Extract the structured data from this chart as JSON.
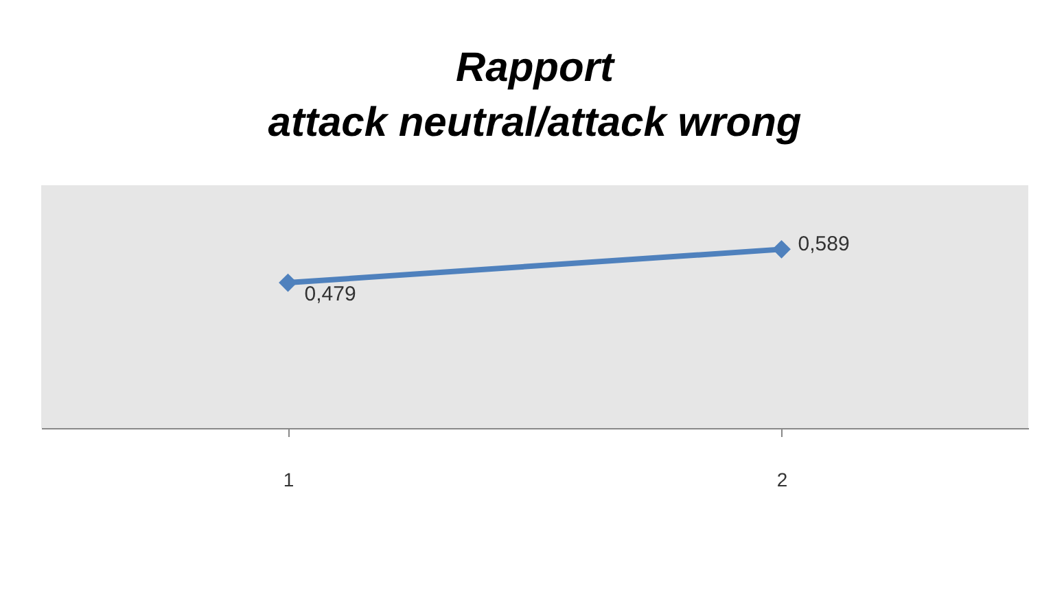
{
  "chart_data": {
    "type": "line",
    "title": [
      "Rapport",
      "attack neutral/attack wrong"
    ],
    "categories": [
      "1",
      "2"
    ],
    "series": [
      {
        "color": "#4f81bd",
        "values": [
          0.479,
          0.589
        ],
        "value_labels": [
          "0,479",
          "0,589"
        ]
      }
    ],
    "ylim": [
      0,
      0.8
    ],
    "tick_labels": "x",
    "grid": false,
    "marker": "diamond",
    "line_style": "solid"
  }
}
